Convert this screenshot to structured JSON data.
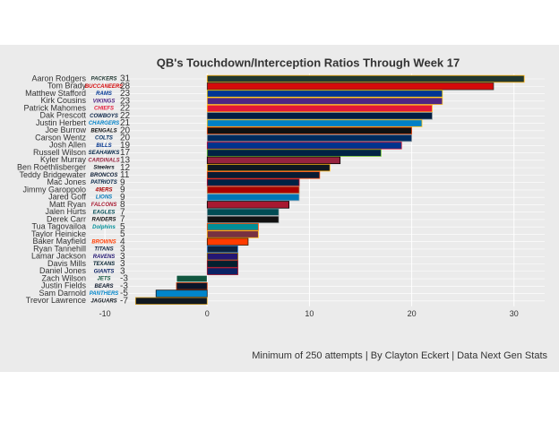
{
  "chart_data": {
    "type": "bar",
    "orientation": "horizontal",
    "title": "QB's Touchdown/Interception Ratios Through Week 17",
    "caption": "Minimum of 250 attempts | By Clayton Eckert | Data Next Gen Stats",
    "categories": [
      "Aaron Rodgers",
      "Tom Brady",
      "Matthew Stafford",
      "Kirk Cousins",
      "Patrick Mahomes",
      "Dak Prescott",
      "Justin Herbert",
      "Joe Burrow",
      "Carson Wentz",
      "Josh Allen",
      "Russell Wilson",
      "Kyler Murray",
      "Ben Roethlisberger",
      "Teddy Bridgewater",
      "Mac Jones",
      "Jimmy Garoppolo",
      "Jared Goff",
      "Matt Ryan",
      "Jalen Hurts",
      "Derek Carr",
      "Tua Tagovailoa",
      "Taylor Heinicke",
      "Baker Mayfield",
      "Ryan Tannehill",
      "Lamar Jackson",
      "Davis Mills",
      "Daniel Jones",
      "Zach Wilson",
      "Justin Fields",
      "Sam Darnold",
      "Trevor Lawrence"
    ],
    "teams": [
      "PACKERS",
      "BUCCANEERS",
      "RAMS",
      "VIKINGS",
      "CHIEFS",
      "COWBOYS",
      "CHARGERS",
      "BENGALS",
      "COLTS",
      "BILLS",
      "SEAHAWKS",
      "CARDINALS",
      "Steelers",
      "BRONCOS",
      "PATRIOTS",
      "49ERS",
      "LIONS",
      "FALCONS",
      "EAGLES",
      "RAIDERS",
      "Dolphins",
      null,
      "BROWNS",
      "TITANS",
      "RAVENS",
      "TEXANS",
      "GIANTS",
      "JETS",
      "BEARS",
      "PANTHERS",
      "JAGUARS"
    ],
    "values": [
      31,
      28,
      23,
      23,
      22,
      22,
      21,
      20,
      20,
      19,
      17,
      13,
      12,
      11,
      9,
      9,
      9,
      8,
      7,
      7,
      5,
      5,
      4,
      3,
      3,
      3,
      3,
      -3,
      -3,
      -5,
      -7
    ],
    "colors": [
      "#203731",
      "#d50a0a",
      "#003594",
      "#4f2683",
      "#e31837",
      "#041e42",
      "#0080c6",
      "#111111",
      "#002c5f",
      "#00338d",
      "#002244",
      "#97233f",
      "#101820",
      "#0a1b33",
      "#002244",
      "#aa0000",
      "#0076b6",
      "#a71930",
      "#004c54",
      "#111111",
      "#008e97",
      "#773141",
      "#ff3c00",
      "#0c2340",
      "#241773",
      "#03202f",
      "#0b2265",
      "#125740",
      "#0b162a",
      "#0085ca",
      "#101820"
    ],
    "borders": [
      "#ffb612",
      "#34302b",
      "#ffd100",
      "#ffc62f",
      "#ffb81c",
      "#869397",
      "#ffc20e",
      "#fb4f14",
      "#a2aaad",
      "#c60c30",
      "#69be28",
      "#000000",
      "#ffb612",
      "#fb4f14",
      "#c60c30",
      "#b3995d",
      "#b0b7bc",
      "#000000",
      "#a5acaf",
      "#a5acaf",
      "#fc4c02",
      "#ffb612",
      "#311d00",
      "#4b92db",
      "#9e7c0c",
      "#a71930",
      "#a71930",
      "#ffffff",
      "#c83803",
      "#101820",
      "#d7a22a"
    ],
    "xlim": [
      -11.5,
      33
    ],
    "xticks": [
      -10,
      0,
      10,
      20,
      30
    ],
    "grid": true
  }
}
